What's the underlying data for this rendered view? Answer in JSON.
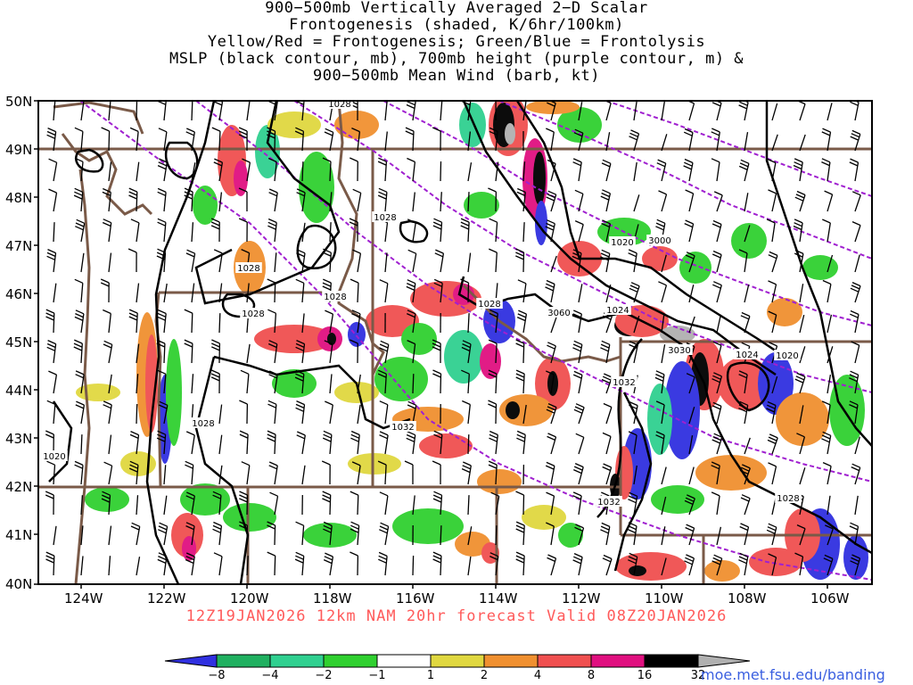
{
  "header": {
    "title_lines": [
      "900−500mb Vertically Averaged 2−D Scalar",
      "Frontogenesis (shaded, K/6hr/100km)",
      "Yellow/Red = Frontogenesis;  Green/Blue = Frontolysis",
      "MSLP (black contour, mb), 700mb height (purple contour, m) &",
      "900−500mb Mean Wind (barb, kt)"
    ]
  },
  "axes": {
    "lat_labels": [
      "50N",
      "49N",
      "48N",
      "47N",
      "46N",
      "45N",
      "44N",
      "43N",
      "42N",
      "41N",
      "40N"
    ],
    "lon_labels": [
      "124W",
      "122W",
      "120W",
      "118W",
      "116W",
      "114W",
      "112W",
      "110W",
      "108W",
      "106W"
    ]
  },
  "contours": {
    "mslp_labels": [
      "1028",
      "1028",
      "1028",
      "1028",
      "1028",
      "1028",
      "1028",
      "1020",
      "1032",
      "1032",
      "1032",
      "1024",
      "1024",
      "1020",
      "1020",
      "1028"
    ],
    "height_labels": [
      "3000",
      "3060",
      "3030"
    ]
  },
  "footer": {
    "valid_text": "12Z19JAN2026 12km NAM 20hr forecast Valid 08Z20JAN2026",
    "credit": "moe.met.fsu.edu/banding"
  },
  "colorbar": {
    "labels": [
      "−8",
      "−4",
      "−2",
      "−1",
      "1",
      "2",
      "4",
      "8",
      "16",
      "32"
    ],
    "colors": [
      "#3030e0",
      "#20b060",
      "#30d090",
      "#30d030",
      "#ffffff",
      "#e0d840",
      "#f09030",
      "#f05050",
      "#e01080",
      "#000000",
      "#b0b0b0"
    ]
  },
  "colors": {
    "frame": "#000000",
    "borders": "#7a5a48",
    "mslp": "#000000",
    "height": "#a020d0",
    "barbs": "#000000"
  }
}
